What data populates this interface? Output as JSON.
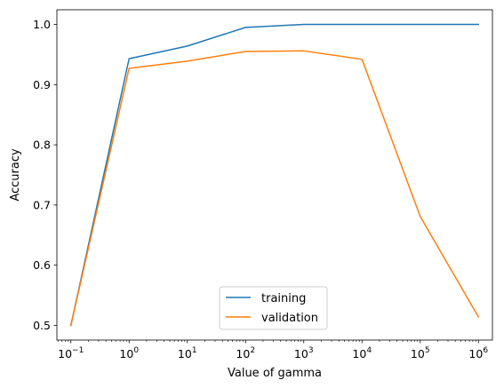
{
  "chart_data": {
    "type": "line",
    "title": "",
    "xlabel": "Value of gamma",
    "ylabel": "Accuracy",
    "xscale": "log",
    "x": [
      0.1,
      1,
      10,
      100,
      1000,
      10000,
      100000,
      1000000
    ],
    "xlim": [
      0.0575,
      1740000
    ],
    "ylim": [
      0.4757,
      1.0243
    ],
    "x_ticks": [
      {
        "value": 0.1,
        "base": "10",
        "exp": "−1"
      },
      {
        "value": 1,
        "base": "10",
        "exp": "0"
      },
      {
        "value": 10,
        "base": "10",
        "exp": "1"
      },
      {
        "value": 100,
        "base": "10",
        "exp": "2"
      },
      {
        "value": 1000,
        "base": "10",
        "exp": "3"
      },
      {
        "value": 10000,
        "base": "10",
        "exp": "4"
      },
      {
        "value": 100000,
        "base": "10",
        "exp": "5"
      },
      {
        "value": 1000000,
        "base": "10",
        "exp": "6"
      }
    ],
    "y_ticks": [
      {
        "value": 0.5,
        "label": "0.5"
      },
      {
        "value": 0.6,
        "label": "0.6"
      },
      {
        "value": 0.7,
        "label": "0.7"
      },
      {
        "value": 0.8,
        "label": "0.8"
      },
      {
        "value": 0.9,
        "label": "0.9"
      },
      {
        "value": 1.0,
        "label": "1.0"
      }
    ],
    "series": [
      {
        "name": "training",
        "color": "#1f77b4",
        "values": [
          0.5,
          0.943,
          0.964,
          0.995,
          1.0,
          1.0,
          1.0,
          1.0
        ]
      },
      {
        "name": "validation",
        "color": "#ff7f0e",
        "values": [
          0.5,
          0.927,
          0.939,
          0.955,
          0.956,
          0.942,
          0.681,
          0.514
        ]
      }
    ],
    "grid": false,
    "legend": "lower center"
  }
}
